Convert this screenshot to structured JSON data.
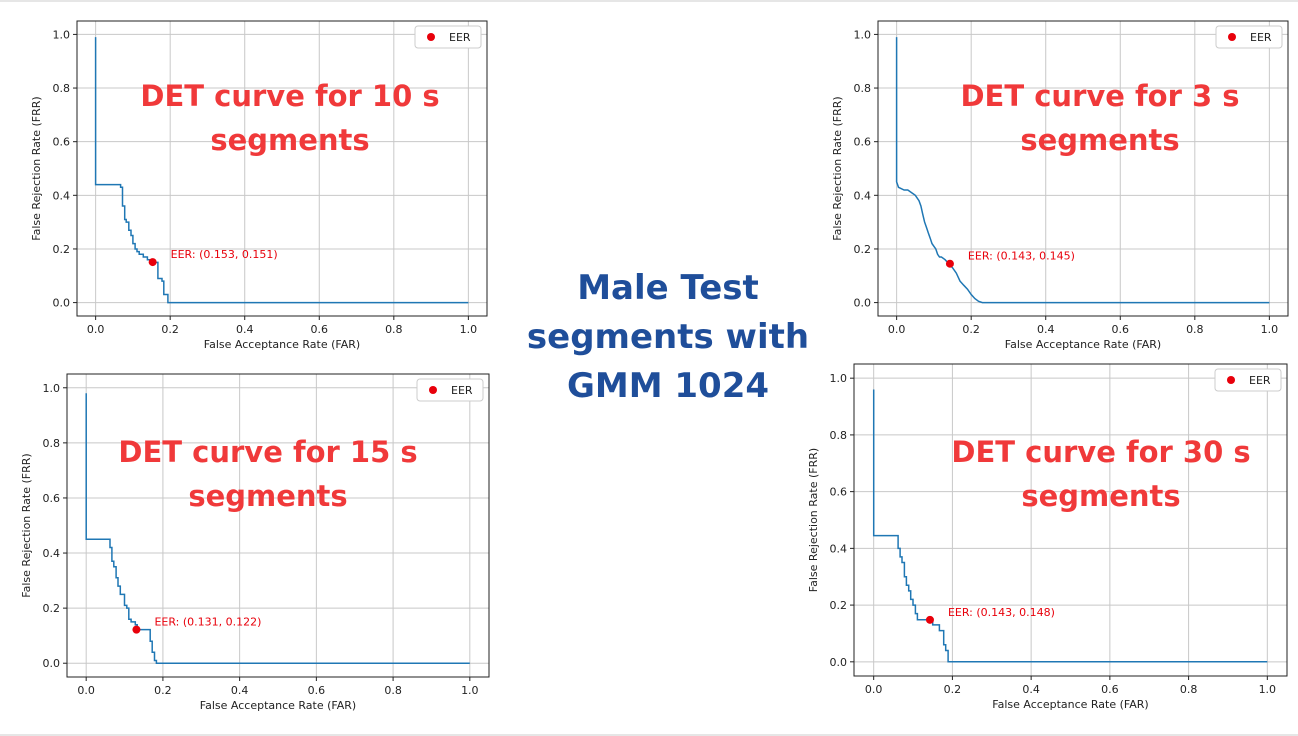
{
  "center_title": {
    "line1": "Male Test",
    "line2": "segments with",
    "line3": "GMM 1024"
  },
  "colors": {
    "curve": "#1f77b4",
    "eer_point": "#e8000b",
    "overlay_title": "#f0393a",
    "center_title": "#1f4e9a"
  },
  "chart_data": [
    {
      "type": "line",
      "id": "det-10s",
      "title_line1": "DET curve for 10 s",
      "title_line2": "segments",
      "xlabel": "False Acceptance Rate (FAR)",
      "ylabel": "False Rejection Rate (FRR)",
      "xlim": [
        0,
        1
      ],
      "ylim": [
        0,
        1
      ],
      "xticks": [
        0.0,
        0.2,
        0.4,
        0.6,
        0.8,
        1.0
      ],
      "yticks": [
        0.0,
        0.2,
        0.4,
        0.6,
        0.8,
        1.0
      ],
      "tick_labels": [
        "0.0",
        "0.2",
        "0.4",
        "0.6",
        "0.8",
        "1.0"
      ],
      "grid": true,
      "legend": {
        "label": "EER",
        "location": "top-right"
      },
      "series": [
        {
          "name": "DET",
          "x": [
            0,
            0,
            0.067,
            0.067,
            0.072,
            0.072,
            0.078,
            0.078,
            0.082,
            0.082,
            0.089,
            0.089,
            0.095,
            0.095,
            0.1,
            0.1,
            0.106,
            0.106,
            0.111,
            0.111,
            0.117,
            0.117,
            0.128,
            0.128,
            0.139,
            0.139,
            0.153,
            0.153,
            0.167,
            0.167,
            0.178,
            0.178,
            0.183,
            0.183,
            0.194,
            0.194,
            1.0
          ],
          "y": [
            0.99,
            0.44,
            0.44,
            0.43,
            0.43,
            0.36,
            0.36,
            0.31,
            0.31,
            0.3,
            0.3,
            0.27,
            0.27,
            0.25,
            0.25,
            0.22,
            0.22,
            0.2,
            0.2,
            0.19,
            0.19,
            0.18,
            0.18,
            0.17,
            0.17,
            0.16,
            0.16,
            0.15,
            0.15,
            0.09,
            0.09,
            0.08,
            0.08,
            0.03,
            0.03,
            0.0,
            0.0
          ]
        }
      ],
      "eer": {
        "x": 0.153,
        "y": 0.151,
        "label": "EER: (0.153, 0.151)"
      }
    },
    {
      "type": "line",
      "id": "det-3s",
      "title_line1": "DET curve for 3 s",
      "title_line2": "segments",
      "xlabel": "False Acceptance Rate (FAR)",
      "ylabel": "False Rejection Rate (FRR)",
      "xlim": [
        0,
        1
      ],
      "ylim": [
        0,
        1
      ],
      "xticks": [
        0.0,
        0.2,
        0.4,
        0.6,
        0.8,
        1.0
      ],
      "yticks": [
        0.0,
        0.2,
        0.4,
        0.6,
        0.8,
        1.0
      ],
      "tick_labels": [
        "0.0",
        "0.2",
        "0.4",
        "0.6",
        "0.8",
        "1.0"
      ],
      "grid": true,
      "legend": {
        "label": "EER",
        "location": "top-right"
      },
      "series": [
        {
          "name": "DET",
          "x": [
            0,
            0,
            0.005,
            0.02,
            0.03,
            0.04,
            0.05,
            0.06,
            0.065,
            0.07,
            0.075,
            0.08,
            0.085,
            0.09,
            0.095,
            0.1,
            0.105,
            0.11,
            0.115,
            0.12,
            0.13,
            0.14,
            0.15,
            0.16,
            0.17,
            0.18,
            0.19,
            0.2,
            0.21,
            0.22,
            0.23,
            1.0
          ],
          "y": [
            0.99,
            0.45,
            0.43,
            0.42,
            0.42,
            0.41,
            0.4,
            0.38,
            0.36,
            0.33,
            0.3,
            0.28,
            0.26,
            0.24,
            0.22,
            0.21,
            0.2,
            0.18,
            0.17,
            0.17,
            0.16,
            0.145,
            0.13,
            0.11,
            0.08,
            0.065,
            0.05,
            0.03,
            0.015,
            0.005,
            0.0,
            0.0
          ]
        }
      ],
      "eer": {
        "x": 0.143,
        "y": 0.145,
        "label": "EER: (0.143, 0.145)"
      }
    },
    {
      "type": "line",
      "id": "det-15s",
      "title_line1": "DET curve for 15 s",
      "title_line2": "segments",
      "xlabel": "False Acceptance Rate (FAR)",
      "ylabel": "False Rejection Rate (FRR)",
      "xlim": [
        0,
        1
      ],
      "ylim": [
        0,
        1
      ],
      "xticks": [
        0.0,
        0.2,
        0.4,
        0.6,
        0.8,
        1.0
      ],
      "yticks": [
        0.0,
        0.2,
        0.4,
        0.6,
        0.8,
        1.0
      ],
      "tick_labels": [
        "0.0",
        "0.2",
        "0.4",
        "0.6",
        "0.8",
        "1.0"
      ],
      "grid": true,
      "legend": {
        "label": "EER",
        "location": "top-right"
      },
      "series": [
        {
          "name": "DET",
          "x": [
            0,
            0,
            0.062,
            0.062,
            0.067,
            0.067,
            0.072,
            0.072,
            0.078,
            0.078,
            0.083,
            0.083,
            0.089,
            0.089,
            0.1,
            0.1,
            0.106,
            0.106,
            0.111,
            0.111,
            0.117,
            0.117,
            0.128,
            0.128,
            0.133,
            0.133,
            0.167,
            0.167,
            0.172,
            0.172,
            0.178,
            0.178,
            0.183,
            0.183,
            1.0
          ],
          "y": [
            0.98,
            0.45,
            0.45,
            0.42,
            0.42,
            0.37,
            0.37,
            0.35,
            0.35,
            0.31,
            0.31,
            0.28,
            0.28,
            0.25,
            0.25,
            0.21,
            0.21,
            0.2,
            0.2,
            0.16,
            0.16,
            0.15,
            0.15,
            0.14,
            0.14,
            0.122,
            0.122,
            0.08,
            0.08,
            0.04,
            0.04,
            0.01,
            0.01,
            0.0,
            0.0
          ]
        }
      ],
      "eer": {
        "x": 0.131,
        "y": 0.122,
        "label": "EER: (0.131, 0.122)"
      }
    },
    {
      "type": "line",
      "id": "det-30s",
      "title_line1": "DET curve for 30 s",
      "title_line2": "segments",
      "xlabel": "False Acceptance Rate (FAR)",
      "ylabel": "False Rejection Rate (FRR)",
      "xlim": [
        0,
        1
      ],
      "ylim": [
        0,
        1
      ],
      "xticks": [
        0.0,
        0.2,
        0.4,
        0.6,
        0.8,
        1.0
      ],
      "yticks": [
        0.0,
        0.2,
        0.4,
        0.6,
        0.8,
        1.0
      ],
      "tick_labels": [
        "0.0",
        "0.2",
        "0.4",
        "0.6",
        "0.8",
        "1.0"
      ],
      "grid": true,
      "legend": {
        "label": "EER",
        "location": "top-right"
      },
      "series": [
        {
          "name": "DET",
          "x": [
            0,
            0,
            0.062,
            0.062,
            0.067,
            0.067,
            0.072,
            0.072,
            0.078,
            0.078,
            0.083,
            0.083,
            0.089,
            0.089,
            0.094,
            0.094,
            0.1,
            0.1,
            0.106,
            0.106,
            0.111,
            0.111,
            0.143,
            0.143,
            0.15,
            0.15,
            0.167,
            0.167,
            0.178,
            0.178,
            0.183,
            0.183,
            0.189,
            0.189,
            1.0
          ],
          "y": [
            0.96,
            0.445,
            0.445,
            0.4,
            0.4,
            0.37,
            0.37,
            0.35,
            0.35,
            0.3,
            0.3,
            0.27,
            0.27,
            0.25,
            0.25,
            0.22,
            0.22,
            0.2,
            0.2,
            0.17,
            0.17,
            0.148,
            0.148,
            0.14,
            0.14,
            0.13,
            0.13,
            0.11,
            0.11,
            0.06,
            0.06,
            0.04,
            0.04,
            0.0,
            0.0
          ]
        }
      ],
      "eer": {
        "x": 0.143,
        "y": 0.148,
        "label": "EER: (0.143, 0.148)"
      }
    }
  ]
}
